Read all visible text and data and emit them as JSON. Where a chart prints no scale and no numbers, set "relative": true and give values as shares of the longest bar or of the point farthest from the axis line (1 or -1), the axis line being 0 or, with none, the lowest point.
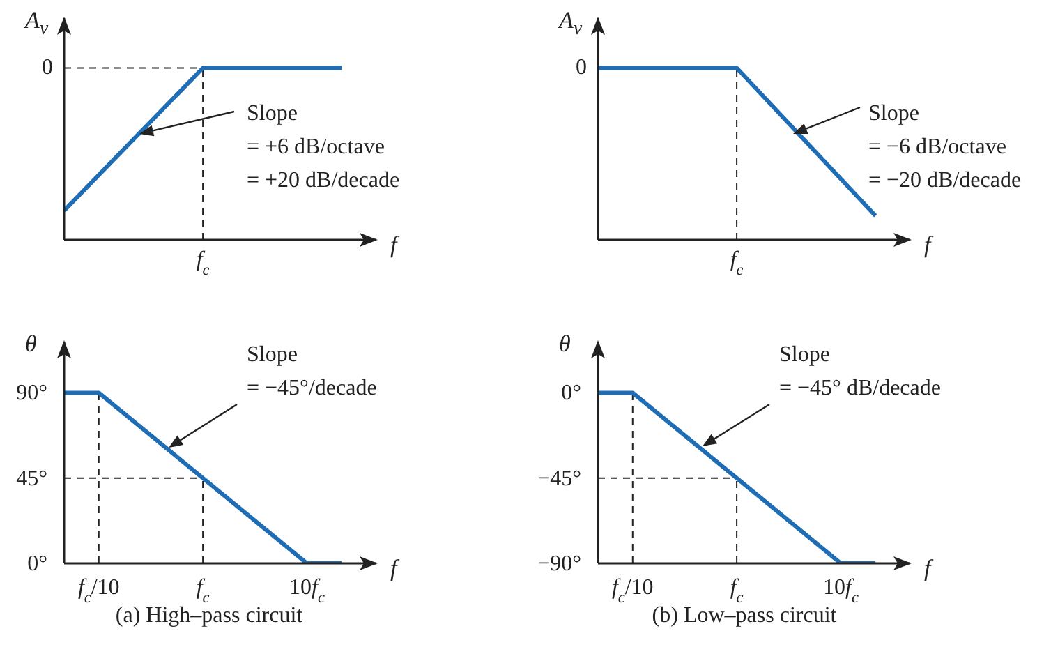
{
  "chart_data": [
    {
      "type": "line",
      "relative": true,
      "ylabel": "A$_{v}$",
      "xlabel": "f",
      "color": "#1f6db5",
      "categories": [
        null,
        null,
        null,
        null,
        null,
        null,
        null,
        null,
        null
      ],
      "values": [
        0.17,
        null,
        null,
        null,
        1,
        null,
        null,
        null,
        1
      ],
      "ref_lines": [
        {
          "axis": "y",
          "value": 1,
          "line_style": "dashed"
        },
        {
          "axis": "x",
          "value": "f$_{c}$",
          "label": "f$_{c}$",
          "line_style": "dashed"
        }
      ],
      "annotations": [
        "0",
        "Slope\n= +6 dB/octave\n= +20 dB/decade"
      ]
    },
    {
      "type": "line",
      "relative": true,
      "ylabel": "A$_{v}$",
      "xlabel": "f",
      "color": "#1f6db5",
      "categories": [
        null,
        null,
        null,
        null,
        null,
        null,
        null,
        null,
        null
      ],
      "values": [
        1,
        null,
        null,
        null,
        1,
        null,
        null,
        null,
        0.14
      ],
      "ref_lines": [
        {
          "axis": "x",
          "value": "f$_{c}$",
          "label": "f$_{c}$",
          "line_style": "dashed"
        }
      ],
      "annotations": [
        "0",
        "Slope\n= −6 dB/octave\n= −20 dB/decade"
      ]
    },
    {
      "type": "line",
      "ylabel": "θ",
      "xlabel": "f",
      "color": "#1f6db5",
      "categories": [
        null,
        "f$_{c}$/10",
        null,
        null,
        "f$_{c}$",
        null,
        null,
        "10f$_{c}$",
        null
      ],
      "values": [
        90,
        90,
        null,
        null,
        null,
        null,
        null,
        0,
        0
      ],
      "ylim": [
        0,
        117
      ],
      "yticks": [
        {
          "value": 0,
          "label": "0°"
        },
        {
          "value": 45,
          "label": "45°"
        },
        {
          "value": 90,
          "label": "90°"
        }
      ],
      "ref_lines": [
        {
          "axis": "x",
          "value": "f$_{c}$/10",
          "line_style": "dashed"
        },
        {
          "axis": "x",
          "value": "f$_{c}$",
          "line_style": "dashed"
        },
        {
          "axis": "y",
          "value": 45,
          "line_style": "dashed"
        }
      ],
      "annotations": [
        "Slope\n= −45°/decade",
        "(a) High–pass circuit"
      ]
    },
    {
      "type": "line",
      "ylabel": "θ",
      "xlabel": "f",
      "color": "#1f6db5",
      "categories": [
        null,
        "f$_{c}$/10",
        null,
        null,
        "f$_{c}$",
        null,
        null,
        "10f$_{c}$",
        null
      ],
      "values": [
        0,
        0,
        null,
        null,
        null,
        null,
        null,
        -90,
        -90
      ],
      "ylim": [
        -90,
        27
      ],
      "yticks": [
        {
          "value": -90,
          "label": "−90°"
        },
        {
          "value": -45,
          "label": "−45°"
        },
        {
          "value": 0,
          "label": "0°"
        }
      ],
      "ref_lines": [
        {
          "axis": "x",
          "value": "f$_{c}$/10",
          "line_style": "dashed"
        },
        {
          "axis": "x",
          "value": "f$_{c}$",
          "line_style": "dashed"
        },
        {
          "axis": "y",
          "value": -45,
          "line_style": "dashed"
        }
      ],
      "annotations": [
        "Slope\n= −45° dB/decade",
        "(b) Low–pass circuit"
      ]
    }
  ]
}
